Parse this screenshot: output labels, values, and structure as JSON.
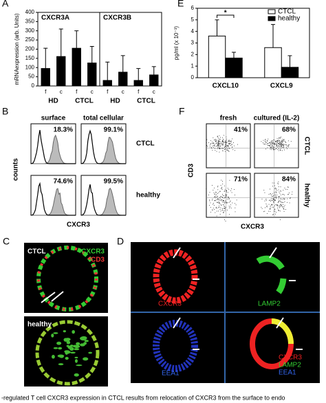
{
  "chart_data": [
    {
      "type": "bar",
      "letter": "A",
      "ylabel": "mRNAexpression (arb. Units)",
      "sections": [
        "CXCR3A",
        "CXCR3B"
      ],
      "groups": [
        "HD",
        "CTCL",
        "HD",
        "CTCL"
      ],
      "categories": [
        "f",
        "c",
        "f",
        "c",
        "f",
        "c",
        "f",
        "c"
      ],
      "values": [
        95,
        160,
        205,
        125,
        30,
        75,
        30,
        60
      ],
      "errors": [
        110,
        150,
        95,
        90,
        100,
        90,
        65,
        45
      ],
      "color": "#000000",
      "ylim": [
        0,
        400
      ],
      "yticks": [
        0,
        50,
        100,
        150,
        200,
        250,
        300,
        350,
        400
      ]
    },
    {
      "type": "bar",
      "letter": "E",
      "ylabel": "pg/ml (x 10⁻³)",
      "categories": [
        "CXCL10",
        "CXCL9"
      ],
      "series": [
        {
          "name": "CTCL",
          "color": "#ffffff",
          "values": [
            3.6,
            2.6
          ],
          "errors": [
            1.4,
            2.0
          ]
        },
        {
          "name": "healthy",
          "color": "#000000",
          "values": [
            1.7,
            0.9
          ],
          "errors": [
            0.5,
            1.0
          ]
        }
      ],
      "ylim": [
        0,
        6
      ],
      "yticks": [
        0,
        1,
        2,
        3,
        4,
        5,
        6
      ],
      "legend": "upper right",
      "annotation": "*"
    }
  ],
  "panel_B": {
    "letter": "B",
    "columns": [
      "surface",
      "total cellular"
    ],
    "rows": [
      "CTCL",
      "healthy"
    ],
    "percentages": [
      "18.3%",
      "99.1%",
      "74.6%",
      "99.5%"
    ],
    "ylabel": "counts",
    "xlabel": "CXCR3"
  },
  "panel_F": {
    "letter": "F",
    "columns": [
      "fresh",
      "cultured (IL-2)"
    ],
    "rows": [
      "CTCL",
      "healthy"
    ],
    "percentages": [
      "41%",
      "68%",
      "71%",
      "84%"
    ],
    "ylabel": "CD3",
    "xlabel": "CXCR3"
  },
  "panel_C": {
    "letter": "C",
    "top_labels": [
      "CTCL",
      "CXCR3",
      "CD3"
    ],
    "bottom_label": "healthy"
  },
  "panel_D": {
    "letter": "D",
    "labels": [
      "CXCR3",
      "LAMP2",
      "EEA1"
    ],
    "merged_labels": [
      "CXCR3",
      "LAMP2",
      "EEA1"
    ]
  },
  "caption": "-regulated T cell CXCR3 expression in CTCL results from relocation of CXCR3 from the surface to endo"
}
